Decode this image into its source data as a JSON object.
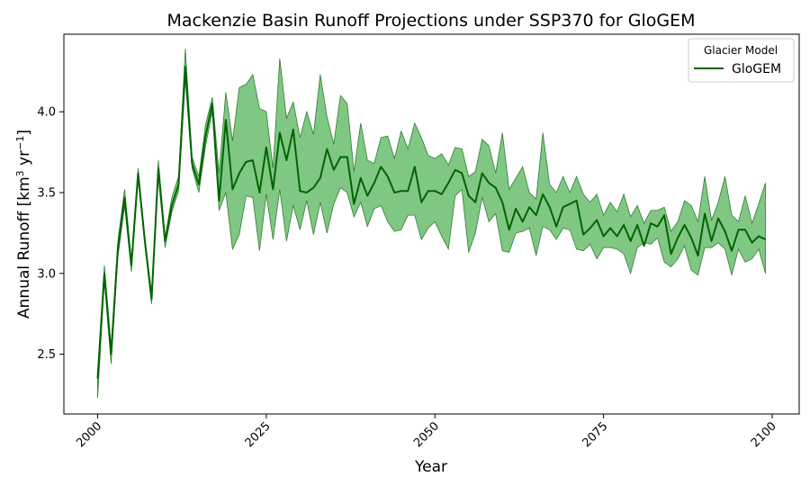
{
  "chart_data": {
    "type": "line",
    "title": "Mackenzie Basin Runoff Projections under SSP370 for GloGEM",
    "xlabel": "Year",
    "ylabel_main": "Annual Runoff [km",
    "ylabel_sup1": "3",
    "ylabel_mid": " yr",
    "ylabel_sup2": "−1",
    "ylabel_end": "]",
    "xlim": [
      1995,
      2104
    ],
    "ylim": [
      2.13,
      4.48
    ],
    "x_ticks": [
      2000,
      2025,
      2050,
      2075,
      2100
    ],
    "y_ticks": [
      2.5,
      3.0,
      3.5,
      4.0
    ],
    "y_tick_labels": [
      "2.5",
      "3.0",
      "3.5",
      "4.0"
    ],
    "legend": {
      "title": "Glacier Model",
      "position": "top-right",
      "entries": [
        "GloGEM"
      ]
    },
    "colors": {
      "line": "#006400",
      "band": "#4CAF50",
      "band_edge": "#2E7D32"
    },
    "series": [
      {
        "name": "GloGEM",
        "x": [
          2000,
          2001,
          2002,
          2003,
          2004,
          2005,
          2006,
          2007,
          2008,
          2009,
          2010,
          2011,
          2012,
          2013,
          2014,
          2015,
          2016,
          2017,
          2018,
          2019,
          2020,
          2021,
          2022,
          2023,
          2024,
          2025,
          2026,
          2027,
          2028,
          2029,
          2030,
          2031,
          2032,
          2033,
          2034,
          2035,
          2036,
          2037,
          2038,
          2039,
          2040,
          2041,
          2042,
          2043,
          2044,
          2045,
          2046,
          2047,
          2048,
          2049,
          2050,
          2051,
          2052,
          2053,
          2054,
          2055,
          2056,
          2057,
          2058,
          2059,
          2060,
          2061,
          2062,
          2063,
          2064,
          2065,
          2066,
          2067,
          2068,
          2069,
          2070,
          2071,
          2072,
          2073,
          2074,
          2075,
          2076,
          2077,
          2078,
          2079,
          2080,
          2081,
          2082,
          2083,
          2084,
          2085,
          2086,
          2087,
          2088,
          2089,
          2090,
          2091,
          2092,
          2093,
          2094,
          2095,
          2096,
          2097,
          2098,
          2099
        ],
        "mean": [
          2.35,
          3.0,
          2.5,
          3.15,
          3.47,
          3.05,
          3.62,
          3.2,
          2.84,
          3.65,
          3.2,
          3.42,
          3.55,
          4.28,
          3.68,
          3.55,
          3.85,
          4.05,
          3.45,
          3.95,
          3.52,
          3.62,
          3.69,
          3.7,
          3.5,
          3.78,
          3.52,
          3.87,
          3.7,
          3.89,
          3.51,
          3.5,
          3.53,
          3.59,
          3.77,
          3.64,
          3.72,
          3.72,
          3.43,
          3.59,
          3.48,
          3.56,
          3.66,
          3.6,
          3.5,
          3.51,
          3.51,
          3.66,
          3.44,
          3.51,
          3.51,
          3.49,
          3.56,
          3.64,
          3.62,
          3.48,
          3.44,
          3.62,
          3.56,
          3.53,
          3.44,
          3.27,
          3.4,
          3.32,
          3.41,
          3.36,
          3.49,
          3.41,
          3.29,
          3.41,
          3.43,
          3.45,
          3.24,
          3.28,
          3.33,
          3.23,
          3.28,
          3.23,
          3.3,
          3.2,
          3.3,
          3.17,
          3.31,
          3.29,
          3.36,
          3.12,
          3.22,
          3.3,
          3.22,
          3.11,
          3.37,
          3.2,
          3.34,
          3.26,
          3.14,
          3.27,
          3.27,
          3.19,
          3.23,
          3.21
        ],
        "upper": [
          2.38,
          3.05,
          2.55,
          3.2,
          3.52,
          3.08,
          3.65,
          3.22,
          2.88,
          3.7,
          3.22,
          3.47,
          3.6,
          4.39,
          3.72,
          3.6,
          3.92,
          4.09,
          3.62,
          4.12,
          3.82,
          4.15,
          4.17,
          4.23,
          4.02,
          4.0,
          3.65,
          4.33,
          3.96,
          4.06,
          3.84,
          4.0,
          3.86,
          4.23,
          3.97,
          3.8,
          4.1,
          4.05,
          3.63,
          3.93,
          3.7,
          3.68,
          3.84,
          3.85,
          3.71,
          3.88,
          3.77,
          3.93,
          3.84,
          3.73,
          3.71,
          3.74,
          3.67,
          3.78,
          3.77,
          3.6,
          3.63,
          3.83,
          3.79,
          3.62,
          3.87,
          3.52,
          3.59,
          3.66,
          3.5,
          3.46,
          3.87,
          3.55,
          3.5,
          3.6,
          3.5,
          3.6,
          3.49,
          3.44,
          3.49,
          3.36,
          3.44,
          3.38,
          3.49,
          3.35,
          3.42,
          3.31,
          3.39,
          3.39,
          3.41,
          3.26,
          3.32,
          3.45,
          3.42,
          3.32,
          3.6,
          3.33,
          3.44,
          3.6,
          3.36,
          3.32,
          3.48,
          3.31,
          3.43,
          3.56
        ],
        "lower": [
          2.23,
          2.95,
          2.44,
          3.1,
          3.42,
          3.01,
          3.58,
          3.18,
          2.81,
          3.6,
          3.16,
          3.38,
          3.51,
          4.2,
          3.65,
          3.5,
          3.79,
          4.0,
          3.39,
          3.5,
          3.15,
          3.24,
          3.48,
          3.47,
          3.14,
          3.49,
          3.21,
          3.52,
          3.2,
          3.42,
          3.27,
          3.45,
          3.24,
          3.44,
          3.25,
          3.43,
          3.53,
          3.5,
          3.35,
          3.44,
          3.29,
          3.4,
          3.42,
          3.32,
          3.26,
          3.27,
          3.36,
          3.36,
          3.21,
          3.28,
          3.32,
          3.23,
          3.15,
          3.48,
          3.52,
          3.13,
          3.25,
          3.47,
          3.32,
          3.37,
          3.14,
          3.13,
          3.25,
          3.26,
          3.28,
          3.11,
          3.29,
          3.27,
          3.21,
          3.28,
          3.27,
          3.15,
          3.14,
          3.18,
          3.09,
          3.16,
          3.16,
          3.15,
          3.12,
          3.0,
          3.16,
          3.19,
          3.18,
          3.22,
          3.07,
          3.04,
          3.09,
          3.17,
          3.02,
          2.99,
          3.16,
          3.16,
          3.19,
          3.15,
          2.99,
          3.15,
          3.07,
          3.09,
          3.15,
          3.0
        ]
      }
    ]
  }
}
